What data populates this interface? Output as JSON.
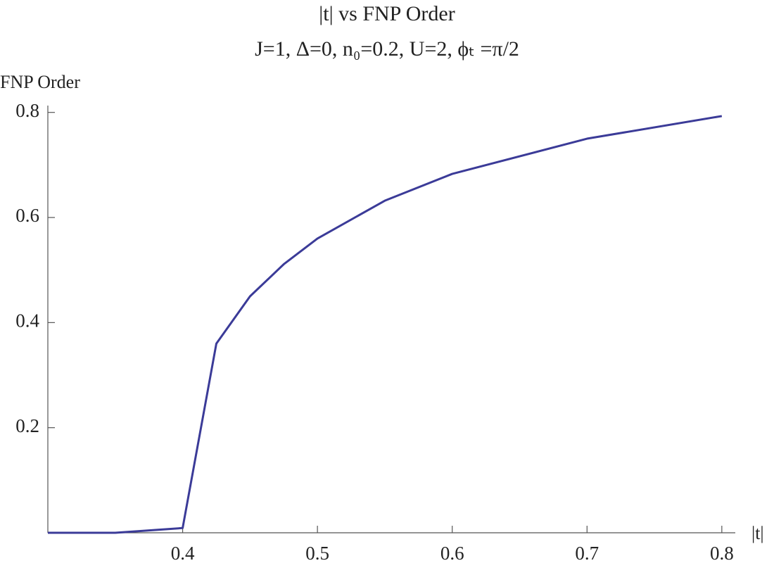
{
  "chart_data": {
    "type": "line",
    "title": "|t| vs FNP Order",
    "subtitle": "J=1, Δ=0, n₀=0.2, U=2, ϕₜ =π/2",
    "y_label": "FNP Order",
    "x_label": "|t|",
    "x": [
      0.3,
      0.35,
      0.4,
      0.425,
      0.45,
      0.475,
      0.5,
      0.55,
      0.6,
      0.7,
      0.8
    ],
    "series": [
      {
        "color": "#3b3b98",
        "values": [
          0,
          0,
          0.009,
          0.36,
          0.45,
          0.511,
          0.56,
          0.632,
          0.683,
          0.75,
          0.793
        ]
      }
    ],
    "xlim": [
      0.3,
      0.81
    ],
    "ylim": [
      0,
      0.813
    ],
    "xticks": [
      0.4,
      0.5,
      0.6,
      0.7,
      0.8
    ],
    "yticks": [
      0.2,
      0.4,
      0.6,
      0.8
    ],
    "grid": false
  }
}
